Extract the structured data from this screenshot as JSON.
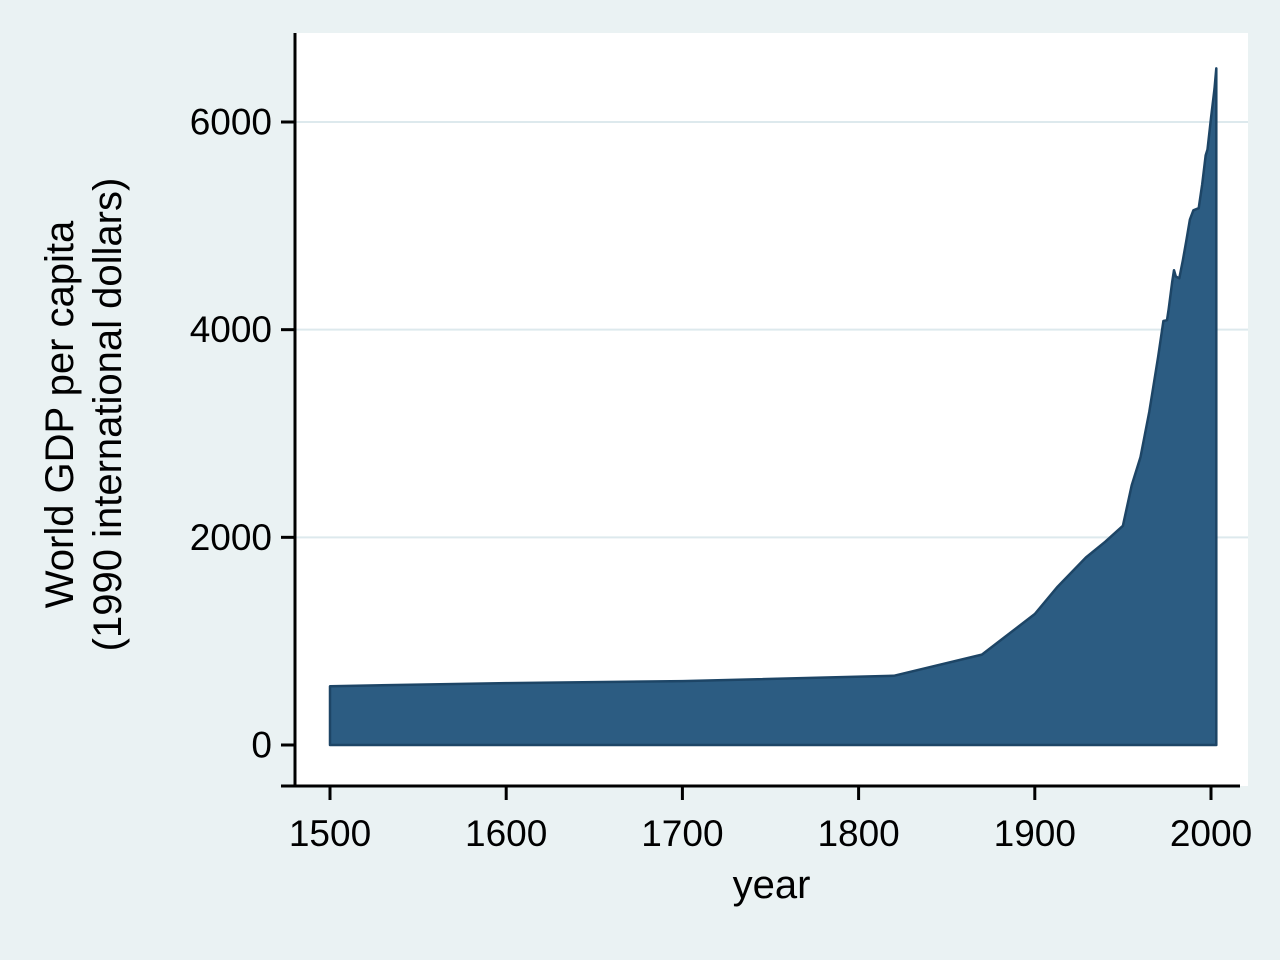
{
  "window": {
    "background": "#eaf2f3"
  },
  "chart_data": {
    "type": "area",
    "title": "",
    "xlabel": "year",
    "ylabel": "World GDP per capita (1990 international dollars)",
    "ylabel_lines": [
      "World GDP per capita",
      "(1990 international dollars)"
    ],
    "x_ticks": [
      1500,
      1600,
      1700,
      1800,
      1900,
      2000
    ],
    "y_ticks": [
      0,
      2000,
      4000,
      6000
    ],
    "xlim": [
      1500,
      2003
    ],
    "ylim": [
      0,
      6600
    ],
    "grid": "horizontal-light",
    "legend": "none",
    "series": [
      {
        "name": "World GDP per capita (1990 international dollars)",
        "points": [
          [
            1500,
            566
          ],
          [
            1600,
            596
          ],
          [
            1700,
            615
          ],
          [
            1820,
            666
          ],
          [
            1870,
            871
          ],
          [
            1900,
            1262
          ],
          [
            1913,
            1526
          ],
          [
            1929,
            1806
          ],
          [
            1940,
            1958
          ],
          [
            1950,
            2111
          ],
          [
            1955,
            2500
          ],
          [
            1960,
            2773
          ],
          [
            1965,
            3210
          ],
          [
            1970,
            3736
          ],
          [
            1973,
            4083
          ],
          [
            1975,
            4091
          ],
          [
            1976,
            4200
          ],
          [
            1978,
            4460
          ],
          [
            1979,
            4573
          ],
          [
            1980,
            4512
          ],
          [
            1982,
            4495
          ],
          [
            1984,
            4665
          ],
          [
            1986,
            4855
          ],
          [
            1988,
            5060
          ],
          [
            1990,
            5150
          ],
          [
            1993,
            5170
          ],
          [
            1995,
            5400
          ],
          [
            1997,
            5680
          ],
          [
            1998,
            5735
          ],
          [
            2000,
            6038
          ],
          [
            2002,
            6320
          ],
          [
            2003,
            6516
          ]
        ]
      }
    ],
    "colors": {
      "page_background": "#eaf2f3",
      "plot_background": "#ffffff",
      "area_fill": "#2c5c82",
      "area_stroke": "#1d4566",
      "gridline": "#dde9ed",
      "axis": "#000000",
      "text": "#000000"
    }
  }
}
